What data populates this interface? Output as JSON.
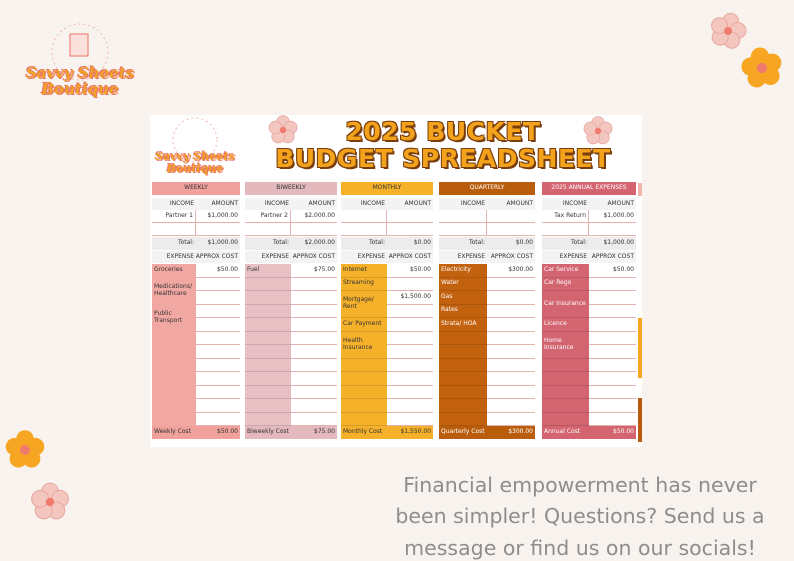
{
  "brand": {
    "lines": [
      "Savvy Sheets",
      "Boutique"
    ]
  },
  "title": {
    "lines": [
      "2025 BUCKET",
      "BUDGET SPREADSHEET"
    ]
  },
  "sheets": [
    {
      "title": "WEEKLY",
      "income_header": [
        "INCOME",
        "AMOUNT"
      ],
      "income": [
        {
          "label": "Partner 1",
          "amount": "$1,000.00"
        }
      ],
      "total": [
        "Total:",
        "$1,000.00"
      ],
      "expense_header": [
        "EXPENSE",
        "APPROX COST"
      ],
      "expenses": [
        {
          "label": "Groceries",
          "cost": "$50.00"
        },
        {
          "label": "Medications/ Healthcare"
        },
        {
          "label": "Public Transport"
        }
      ],
      "footer": [
        "Weekly Cost",
        "$50.00"
      ]
    },
    {
      "title": "BIWEEKLY",
      "income_header": [
        "INCOME",
        "AMOUNT"
      ],
      "income": [
        {
          "label": "Partner 2",
          "amount": "$2,000.00"
        }
      ],
      "total": [
        "Total:",
        "$2,000.00"
      ],
      "expense_header": [
        "EXPENSE",
        "APPROX COST"
      ],
      "expenses": [
        {
          "label": "Fuel",
          "cost": "$75.00"
        }
      ],
      "footer": [
        "Biweekly Cost",
        "$75.00"
      ]
    },
    {
      "title": "MONTHLY",
      "income_header": [
        "INCOME",
        "AMOUNT"
      ],
      "income": [],
      "total": [
        "Total:",
        "$0.00"
      ],
      "expense_header": [
        "EXPENSE",
        "APPROX COST"
      ],
      "expenses": [
        {
          "label": "Internet",
          "cost": "$50.00"
        },
        {
          "label": "Streaming"
        },
        {
          "label": "Mortgage/ Rent",
          "cost": "$1,500.00"
        },
        {
          "label": "Car Payment"
        },
        {
          "label": "Health Insurance"
        }
      ],
      "footer": [
        "Monthly Cost",
        "$1,550.00"
      ]
    },
    {
      "title": "QUARTERLY",
      "income_header": [
        "INCOME",
        "AMOUNT"
      ],
      "income": [],
      "total": [
        "Total:",
        "$0.00"
      ],
      "expense_header": [
        "EXPENSE",
        "APPROX COST"
      ],
      "expenses": [
        {
          "label": "Electricity",
          "cost": "$300.00"
        },
        {
          "label": "Water"
        },
        {
          "label": "Gas"
        },
        {
          "label": "Rates"
        },
        {
          "label": "Strata/ HOA"
        }
      ],
      "footer": [
        "Quarterly Cost",
        "$300.00"
      ]
    },
    {
      "title": "2025 ANNUAL EXPENSES",
      "income_header": [
        "INCOME",
        "AMOUNT"
      ],
      "income": [
        {
          "label": "Tax Return",
          "amount": "$1,000.00"
        }
      ],
      "total": [
        "Total:",
        "$1,000.00"
      ],
      "expense_header": [
        "EXPENSE",
        "APPROX COST"
      ],
      "expenses": [
        {
          "label": "Car Service",
          "cost": "$50.00"
        },
        {
          "label": "Car Rego"
        },
        {
          "label": "Car Insurance"
        },
        {
          "label": "Licence"
        },
        {
          "label": "Home Insurance"
        }
      ],
      "footer": [
        "Annual Cost",
        "$50.00"
      ]
    }
  ],
  "tagline": {
    "lines": [
      "Financial empowerment has never",
      "been simpler! Questions? Send us a",
      "message or find us on our socials!"
    ]
  }
}
